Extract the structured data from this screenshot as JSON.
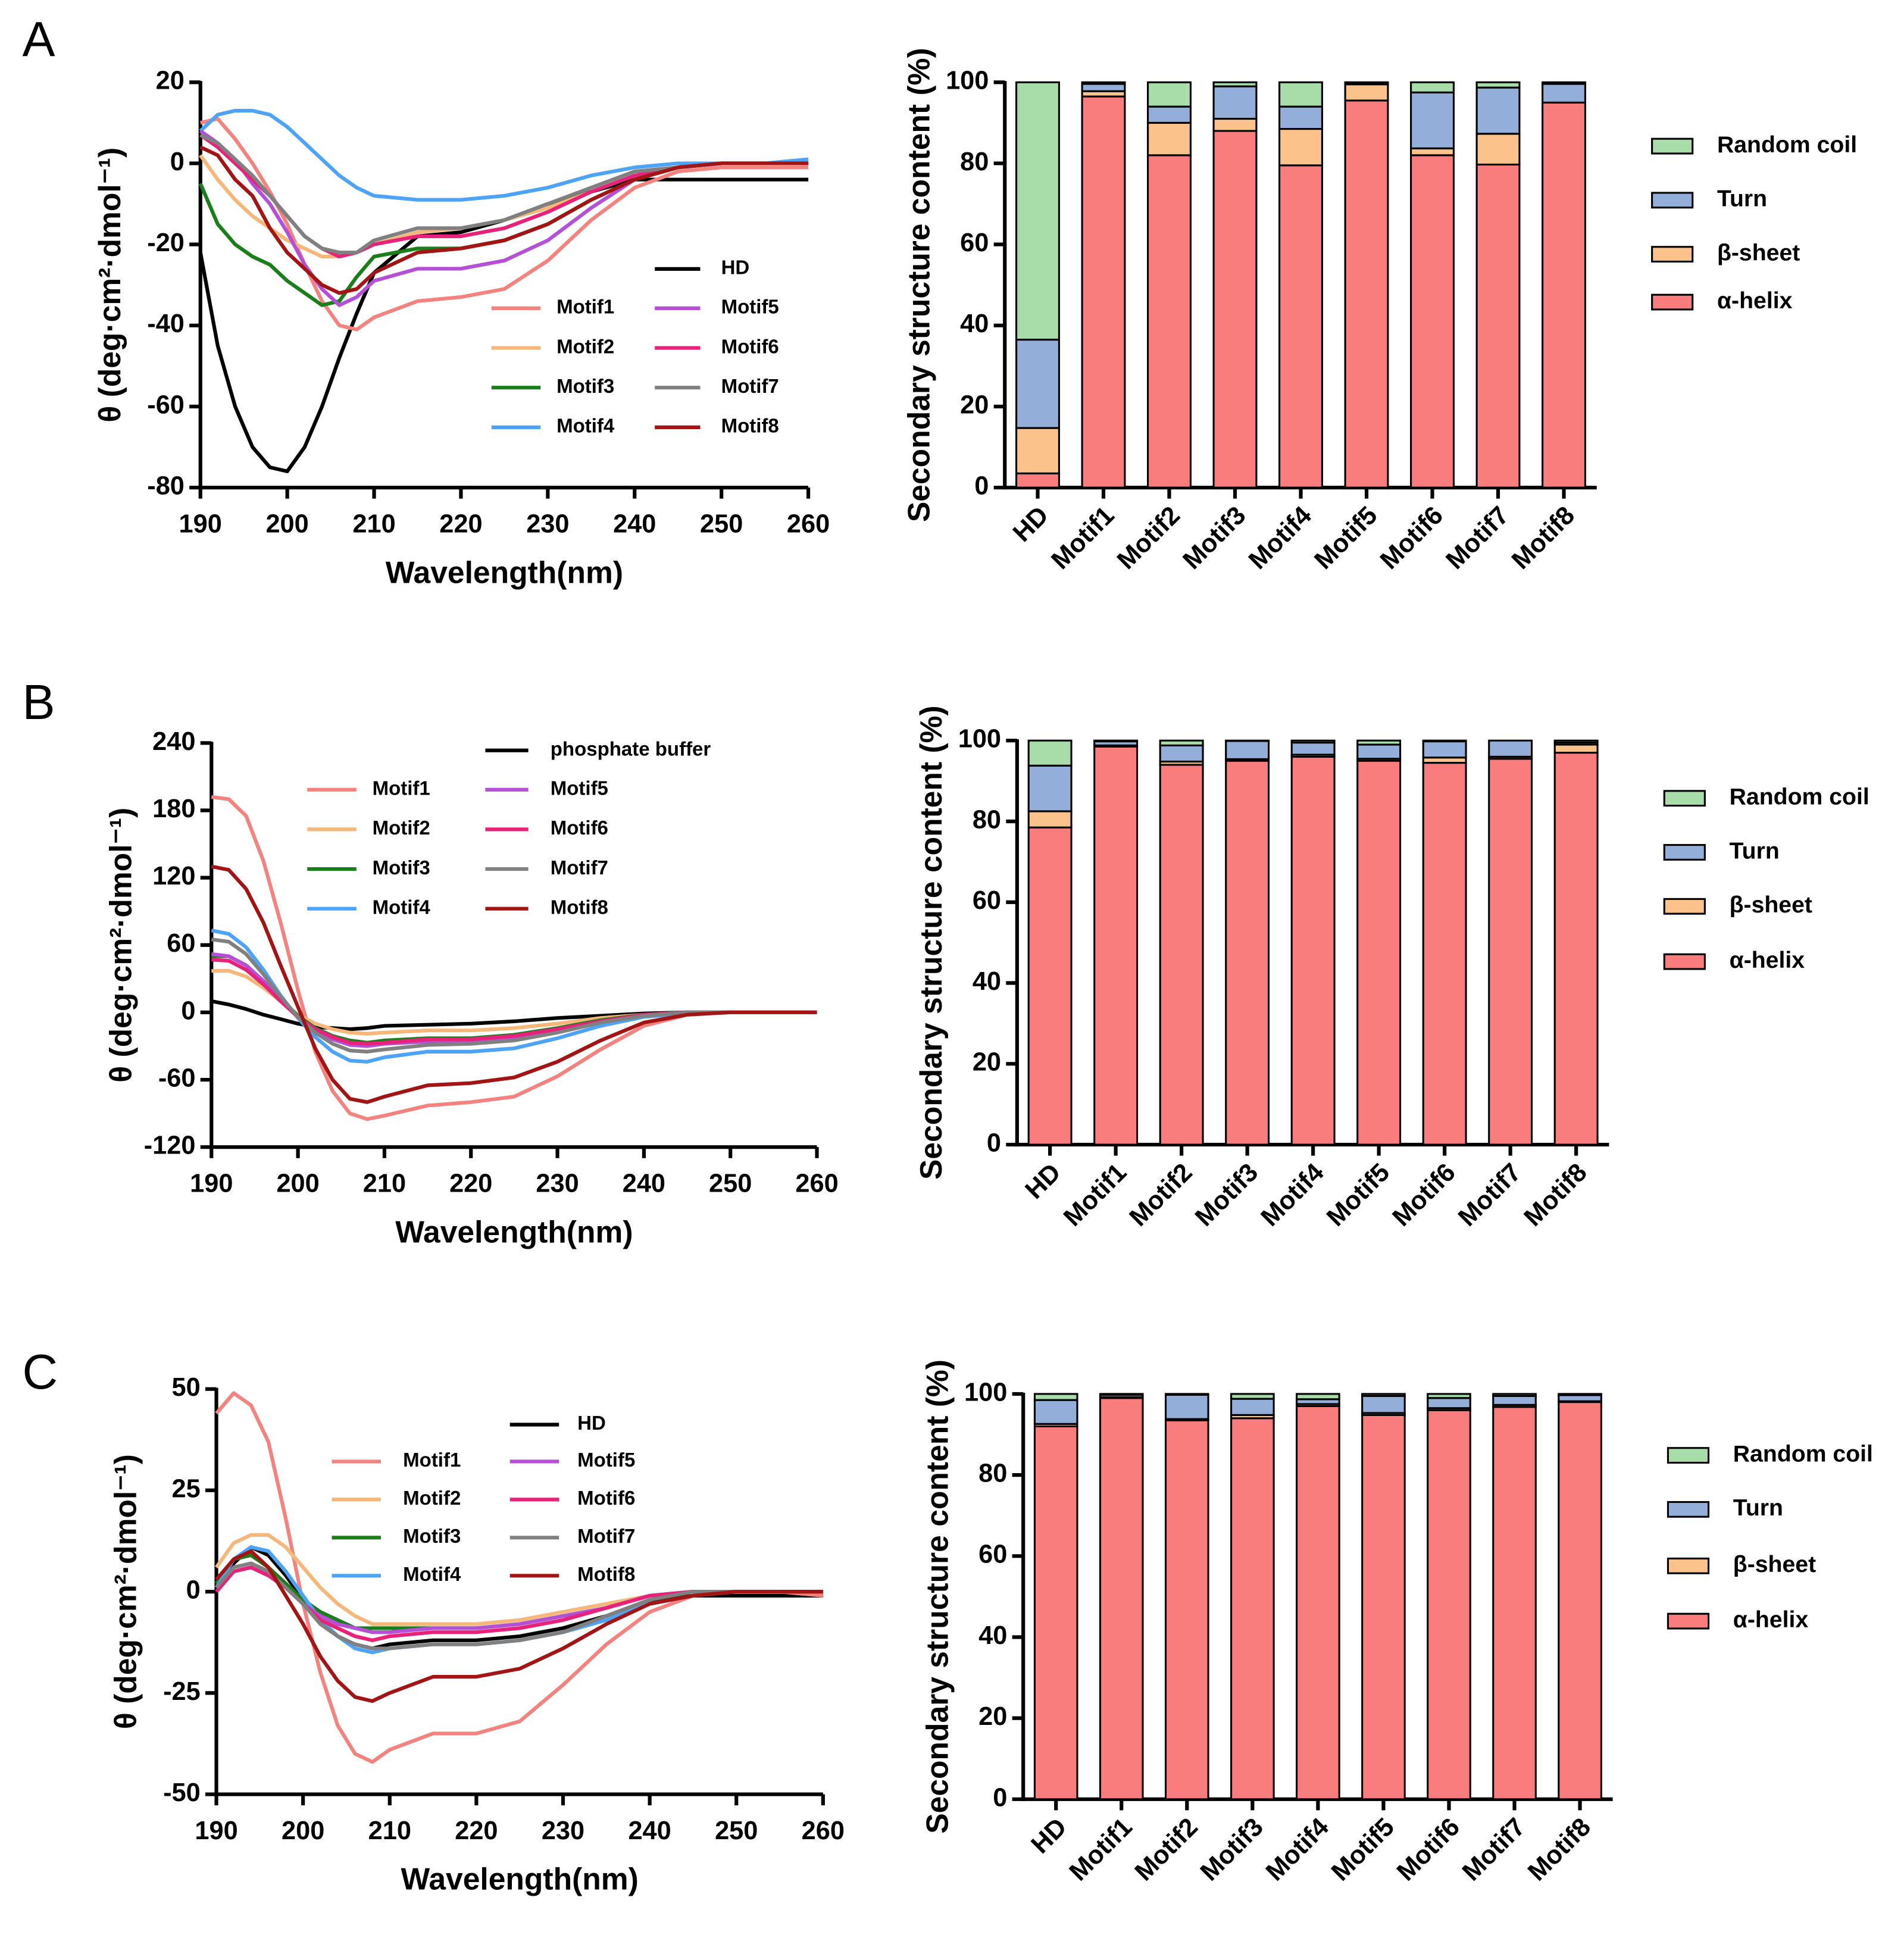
{
  "chart_data": [
    {
      "type": "line",
      "panel": "A",
      "x_label": "Wavelength(nm)",
      "y_label": "θ (deg·cm²·dmol⁻¹)",
      "xlim": [
        190,
        260
      ],
      "xticks": [
        190,
        200,
        210,
        220,
        230,
        240,
        250,
        260
      ],
      "ylim": [
        -80,
        20
      ],
      "yticks": [
        -80,
        -60,
        -40,
        -20,
        0,
        20
      ],
      "x": [
        190,
        192,
        194,
        196,
        198,
        200,
        202,
        204,
        206,
        208,
        210,
        215,
        220,
        225,
        230,
        235,
        240,
        245,
        250,
        255,
        260
      ],
      "series": [
        {
          "name": "HD",
          "color": "#000000",
          "values": [
            -22,
            -45,
            -60,
            -70,
            -75,
            -76,
            -70,
            -60,
            -48,
            -37,
            -27,
            -18,
            -17,
            -14,
            -10,
            -7,
            -4,
            -4,
            -4,
            -4,
            -4
          ]
        },
        {
          "name": "Motif1",
          "color": "#f4827e",
          "values": [
            10,
            11,
            6,
            0,
            -7,
            -15,
            -25,
            -34,
            -40,
            -41,
            -38,
            -34,
            -33,
            -31,
            -24,
            -14,
            -6,
            -2,
            -1,
            -1,
            -1
          ]
        },
        {
          "name": "Motif2",
          "color": "#f5b77a",
          "values": [
            2,
            -4,
            -9,
            -13,
            -16,
            -19,
            -21,
            -23,
            -23,
            -22,
            -20,
            -17,
            -16,
            -14,
            -11,
            -7,
            -3,
            -1,
            0,
            0,
            0
          ]
        },
        {
          "name": "Motif3",
          "color": "#1a7f1a",
          "values": [
            -5,
            -15,
            -20,
            -23,
            -25,
            -29,
            -32,
            -35,
            -34,
            -28,
            -23,
            -21,
            -21,
            -19,
            -15,
            -9,
            -4,
            -1,
            0,
            0,
            0
          ]
        },
        {
          "name": "Motif4",
          "color": "#4da3f5",
          "values": [
            8,
            12,
            13,
            13,
            12,
            9,
            5,
            1,
            -3,
            -6,
            -8,
            -9,
            -9,
            -8,
            -6,
            -3,
            -1,
            0,
            0,
            0,
            1
          ]
        },
        {
          "name": "Motif5",
          "color": "#b44fd6",
          "values": [
            8,
            5,
            1,
            -5,
            -10,
            -17,
            -25,
            -31,
            -35,
            -33,
            -29,
            -26,
            -26,
            -24,
            -19,
            -11,
            -4,
            -1,
            0,
            0,
            0
          ]
        },
        {
          "name": "Motif6",
          "color": "#e8227a",
          "values": [
            7,
            4,
            0,
            -4,
            -8,
            -13,
            -18,
            -21,
            -23,
            -22,
            -20,
            -18,
            -18,
            -16,
            -12,
            -7,
            -3,
            -1,
            0,
            0,
            0
          ]
        },
        {
          "name": "Motif7",
          "color": "#808080",
          "values": [
            7,
            5,
            1,
            -3,
            -8,
            -13,
            -18,
            -21,
            -22,
            -22,
            -19,
            -16,
            -16,
            -14,
            -10,
            -6,
            -2,
            -1,
            0,
            0,
            0
          ]
        },
        {
          "name": "Motif8",
          "color": "#a31515",
          "values": [
            4,
            2,
            -4,
            -8,
            -16,
            -22,
            -26,
            -30,
            -32,
            -31,
            -27,
            -22,
            -21,
            -19,
            -15,
            -9,
            -4,
            -1,
            0,
            0,
            0
          ]
        }
      ]
    },
    {
      "type": "bar",
      "y_label": "Secondary structure content (%)",
      "ylim": [
        0,
        100
      ],
      "yticks": [
        0,
        20,
        40,
        60,
        80,
        100
      ],
      "categories": [
        "HD",
        "Motif1",
        "Motif2",
        "Motif3",
        "Motif4",
        "Motif5",
        "Motif6",
        "Motif7",
        "Motif8"
      ],
      "series": [
        {
          "name": "α-helix",
          "color": "#fa7d7d",
          "values": [
            3.5,
            96.5,
            82,
            88,
            79.5,
            95.5,
            82,
            79.7,
            95
          ]
        },
        {
          "name": "β-sheet",
          "color": "#fbc28b",
          "values": [
            11.2,
            1.3,
            8,
            3,
            9,
            4,
            1.7,
            7.6,
            0
          ]
        },
        {
          "name": "Turn",
          "color": "#93aed8",
          "values": [
            21.8,
            1.8,
            4,
            8,
            5.5,
            0.3,
            13.8,
            11.4,
            4.6
          ]
        },
        {
          "name": "Random coil",
          "color": "#a8dca8",
          "values": [
            63.5,
            0.4,
            6,
            1,
            6,
            0.2,
            2.5,
            1.3,
            0.4
          ]
        }
      ]
    },
    {
      "type": "line",
      "panel": "B",
      "x_label": "Wavelength(nm)",
      "y_label": "θ (deg·cm²·dmol⁻¹)",
      "xlim": [
        190,
        260
      ],
      "xticks": [
        190,
        200,
        210,
        220,
        230,
        240,
        250,
        260
      ],
      "ylim": [
        -120,
        240
      ],
      "yticks": [
        -120,
        -60,
        0,
        60,
        120,
        180,
        240
      ],
      "x": [
        190,
        192,
        194,
        196,
        198,
        200,
        202,
        204,
        206,
        208,
        210,
        215,
        220,
        225,
        230,
        235,
        240,
        245,
        250,
        255,
        260
      ],
      "series": [
        {
          "name": "phosphate buffer",
          "color": "#000000",
          "values": [
            10,
            7,
            3,
            -2,
            -6,
            -10,
            -13,
            -14,
            -15,
            -14,
            -12,
            -11,
            -10,
            -8,
            -5,
            -3,
            -1,
            0,
            0,
            0,
            0
          ]
        },
        {
          "name": "Motif1",
          "color": "#f4827e",
          "values": [
            192,
            190,
            175,
            135,
            80,
            20,
            -35,
            -70,
            -90,
            -95,
            -92,
            -83,
            -80,
            -75,
            -57,
            -33,
            -12,
            -2,
            0,
            0,
            0
          ]
        },
        {
          "name": "Motif2",
          "color": "#f5b77a",
          "values": [
            37,
            37,
            32,
            22,
            10,
            -2,
            -10,
            -15,
            -18,
            -19,
            -18,
            -16,
            -16,
            -14,
            -10,
            -5,
            -2,
            0,
            0,
            0,
            0
          ]
        },
        {
          "name": "Motif3",
          "color": "#1a7f1a",
          "values": [
            50,
            50,
            42,
            28,
            12,
            -3,
            -14,
            -21,
            -25,
            -27,
            -25,
            -23,
            -23,
            -20,
            -14,
            -7,
            -2,
            0,
            0,
            0,
            0
          ]
        },
        {
          "name": "Motif4",
          "color": "#4da3f5",
          "values": [
            73,
            70,
            58,
            38,
            15,
            -5,
            -22,
            -35,
            -43,
            -44,
            -40,
            -35,
            -35,
            -32,
            -23,
            -12,
            -4,
            -1,
            0,
            0,
            0
          ]
        },
        {
          "name": "Motif5",
          "color": "#b44fd6",
          "values": [
            52,
            50,
            42,
            28,
            12,
            -4,
            -16,
            -24,
            -29,
            -30,
            -28,
            -26,
            -25,
            -22,
            -16,
            -8,
            -3,
            0,
            0,
            0,
            0
          ]
        },
        {
          "name": "Motif6",
          "color": "#e8227a",
          "values": [
            47,
            46,
            38,
            25,
            10,
            -4,
            -15,
            -22,
            -27,
            -28,
            -27,
            -24,
            -24,
            -21,
            -15,
            -8,
            -2,
            0,
            0,
            0,
            0
          ]
        },
        {
          "name": "Motif7",
          "color": "#808080",
          "values": [
            65,
            63,
            52,
            34,
            14,
            -4,
            -18,
            -28,
            -34,
            -35,
            -33,
            -29,
            -28,
            -25,
            -18,
            -9,
            -3,
            0,
            0,
            0,
            0
          ]
        },
        {
          "name": "Motif8",
          "color": "#a31515",
          "values": [
            130,
            127,
            110,
            80,
            42,
            5,
            -32,
            -60,
            -77,
            -80,
            -75,
            -65,
            -63,
            -58,
            -44,
            -25,
            -9,
            -2,
            0,
            0,
            0
          ]
        }
      ]
    },
    {
      "type": "bar",
      "y_label": "Secondary structure content (%)",
      "ylim": [
        0,
        100
      ],
      "yticks": [
        0,
        20,
        40,
        60,
        80,
        100
      ],
      "categories": [
        "HD",
        "Motif1",
        "Motif2",
        "Motif3",
        "Motif4",
        "Motif5",
        "Motif6",
        "Motif7",
        "Motif8"
      ],
      "series": [
        {
          "name": "α-helix",
          "color": "#fa7d7d",
          "values": [
            78.5,
            98.5,
            94,
            95,
            96,
            95,
            94.5,
            95.5,
            97
          ]
        },
        {
          "name": "β-sheet",
          "color": "#fbc28b",
          "values": [
            4,
            0.3,
            0.8,
            0.4,
            0.5,
            0.5,
            1.3,
            0.5,
            2
          ]
        },
        {
          "name": "Turn",
          "color": "#93aed8",
          "values": [
            11.3,
            1,
            4,
            4.5,
            3,
            3.5,
            4,
            4,
            0.5
          ]
        },
        {
          "name": "Random coil",
          "color": "#a8dca8",
          "values": [
            6.2,
            0.2,
            1.2,
            0.1,
            0.5,
            1,
            0.2,
            0,
            0.5
          ]
        }
      ]
    },
    {
      "type": "line",
      "panel": "C",
      "x_label": "Wavelength(nm)",
      "y_label": "θ (deg·cm²·dmol⁻¹)",
      "xlim": [
        190,
        260
      ],
      "xticks": [
        190,
        200,
        210,
        220,
        230,
        240,
        250,
        260
      ],
      "ylim": [
        -50,
        50
      ],
      "yticks": [
        -50,
        -25,
        0,
        25,
        50
      ],
      "x": [
        190,
        192,
        194,
        196,
        198,
        200,
        202,
        204,
        206,
        208,
        210,
        215,
        220,
        225,
        230,
        235,
        240,
        245,
        250,
        255,
        260
      ],
      "series": [
        {
          "name": "HD",
          "color": "#000000",
          "values": [
            0,
            7,
            11,
            9,
            4,
            -2,
            -7,
            -11,
            -13,
            -14,
            -13,
            -12,
            -12,
            -11,
            -9,
            -6,
            -2,
            -1,
            -1,
            -1,
            -1
          ]
        },
        {
          "name": "Motif1",
          "color": "#f4827e",
          "values": [
            44,
            49,
            46,
            37,
            18,
            -3,
            -20,
            -33,
            -40,
            -42,
            -39,
            -35,
            -35,
            -32,
            -23,
            -13,
            -5,
            -1,
            0,
            0,
            -1
          ]
        },
        {
          "name": "Motif2",
          "color": "#f5b77a",
          "values": [
            6,
            12,
            14,
            14,
            11,
            6,
            1,
            -3,
            -6,
            -8,
            -8,
            -8,
            -8,
            -7,
            -5,
            -3,
            -1,
            0,
            0,
            0,
            0
          ]
        },
        {
          "name": "Motif3",
          "color": "#1a7f1a",
          "values": [
            2,
            8,
            9,
            6,
            2,
            -2,
            -5,
            -7,
            -9,
            -9,
            -9,
            -9,
            -9,
            -8,
            -6,
            -4,
            -1,
            0,
            0,
            0,
            0
          ]
        },
        {
          "name": "Motif4",
          "color": "#4da3f5",
          "values": [
            1,
            8,
            11,
            10,
            5,
            -1,
            -7,
            -11,
            -14,
            -15,
            -14,
            -13,
            -13,
            -12,
            -10,
            -7,
            -3,
            -1,
            0,
            0,
            0
          ]
        },
        {
          "name": "Motif5",
          "color": "#b44fd6",
          "values": [
            0,
            5,
            6,
            4,
            1,
            -3,
            -6,
            -8,
            -9,
            -10,
            -10,
            -9,
            -9,
            -8,
            -6,
            -4,
            -1,
            0,
            0,
            0,
            0
          ]
        },
        {
          "name": "Motif6",
          "color": "#e8227a",
          "values": [
            0,
            5,
            6,
            4,
            1,
            -3,
            -7,
            -9,
            -11,
            -12,
            -11,
            -10,
            -10,
            -9,
            -7,
            -4,
            -1,
            0,
            0,
            0,
            0
          ]
        },
        {
          "name": "Motif7",
          "color": "#808080",
          "values": [
            1,
            6,
            7,
            5,
            1,
            -3,
            -8,
            -11,
            -13,
            -14,
            -14,
            -13,
            -13,
            -12,
            -10,
            -6,
            -2,
            0,
            0,
            0,
            0
          ]
        },
        {
          "name": "Motif8",
          "color": "#a31515",
          "values": [
            3,
            8,
            10,
            6,
            -1,
            -8,
            -16,
            -22,
            -26,
            -27,
            -25,
            -21,
            -21,
            -19,
            -14,
            -8,
            -3,
            -1,
            0,
            0,
            0
          ]
        }
      ]
    },
    {
      "type": "bar",
      "y_label": "Secondary structure content (%)",
      "ylim": [
        0,
        100
      ],
      "yticks": [
        0,
        20,
        40,
        60,
        80,
        100
      ],
      "categories": [
        "HD",
        "Motif1",
        "Motif2",
        "Motif3",
        "Motif4",
        "Motif5",
        "Motif6",
        "Motif7",
        "Motif8"
      ],
      "series": [
        {
          "name": "α-helix",
          "color": "#fa7d7d",
          "values": [
            92,
            99,
            93.5,
            94,
            97,
            94.8,
            96,
            96.8,
            98
          ]
        },
        {
          "name": "β-sheet",
          "color": "#fbc28b",
          "values": [
            0.6,
            0.2,
            0.3,
            0.8,
            0.5,
            0.5,
            0.5,
            0.5,
            0.2
          ]
        },
        {
          "name": "Turn",
          "color": "#93aed8",
          "values": [
            5.9,
            0.6,
            6,
            4,
            1.2,
            4.2,
            2.5,
            2.2,
            1.5
          ]
        },
        {
          "name": "Random coil",
          "color": "#a8dca8",
          "values": [
            1.5,
            0.2,
            0.2,
            1.2,
            1.3,
            0.5,
            1,
            0.5,
            0.3
          ]
        }
      ]
    }
  ]
}
